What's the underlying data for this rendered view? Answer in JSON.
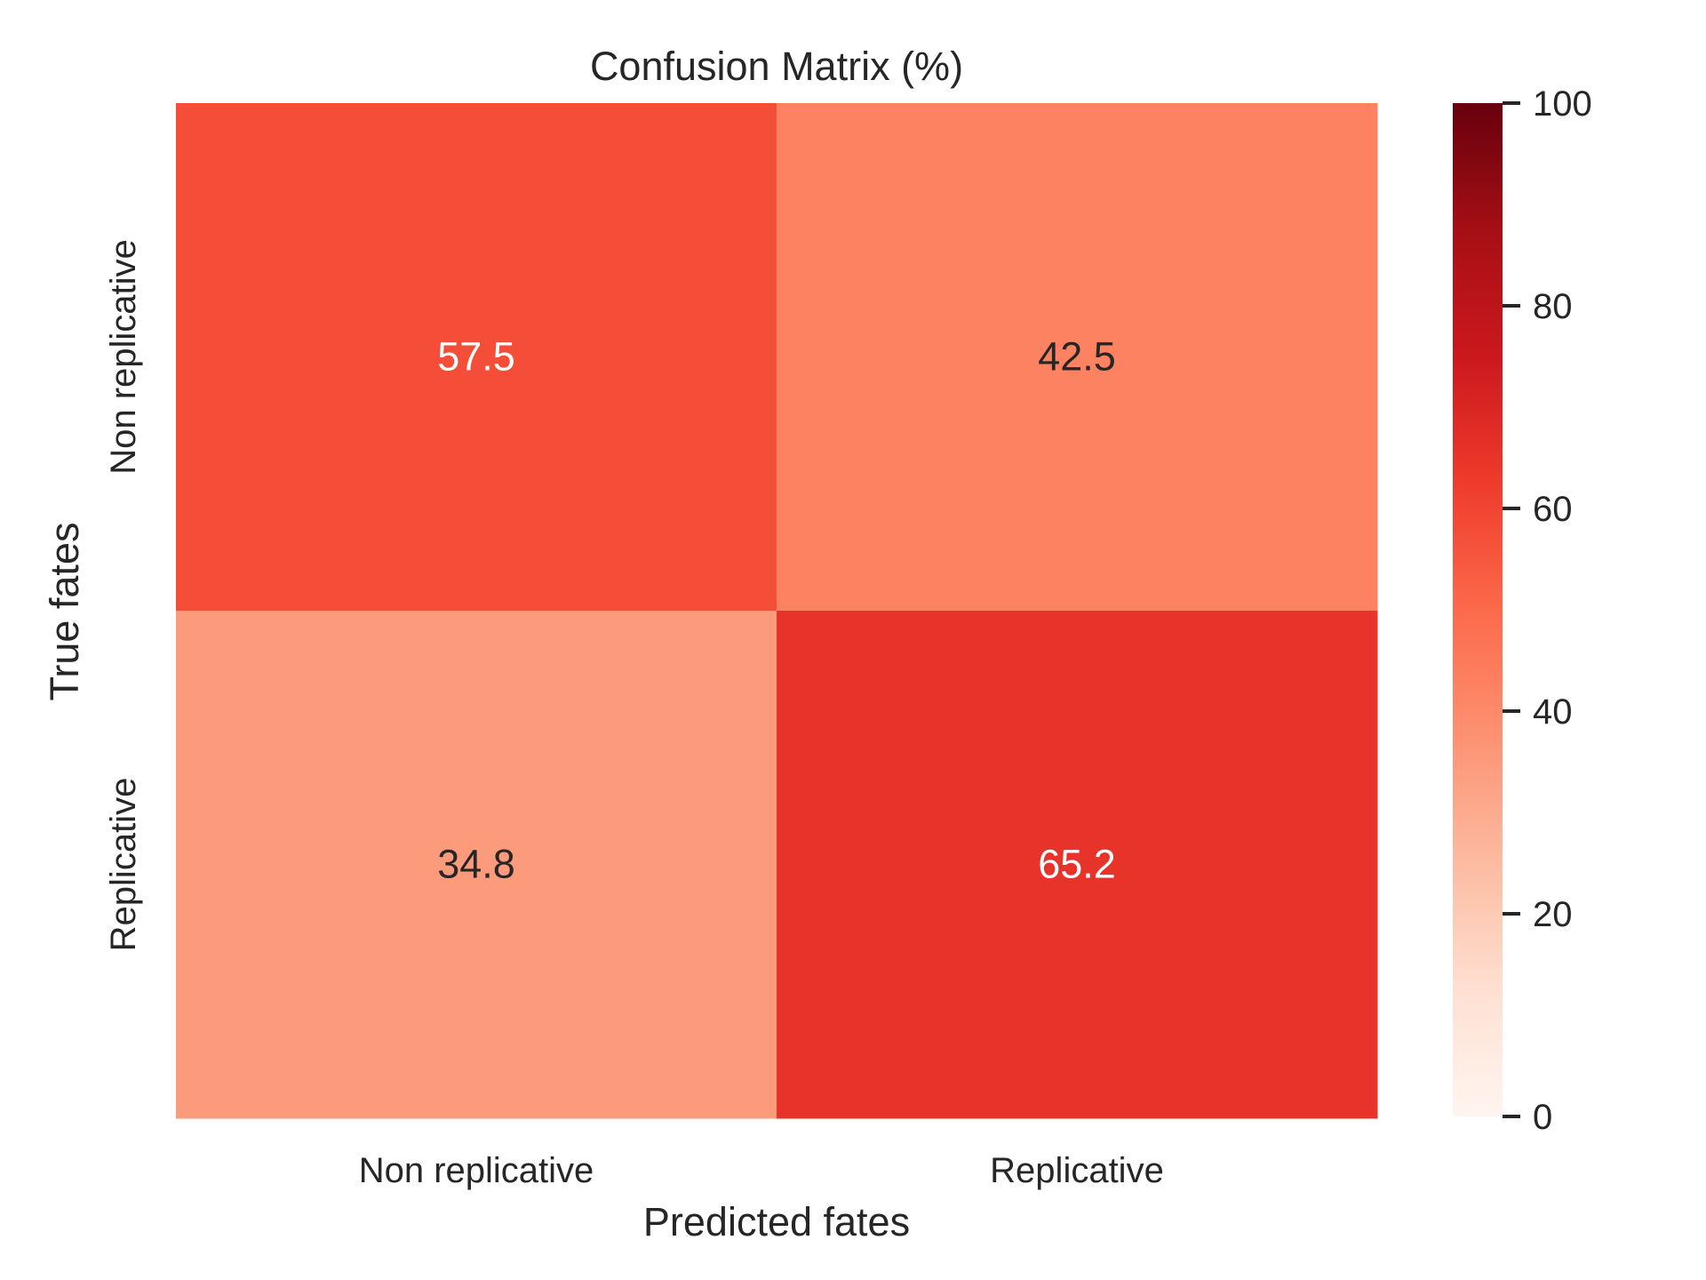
{
  "chart_data": {
    "type": "heatmap",
    "title": "Confusion Matrix (%)",
    "xlabel": "Predicted fates",
    "ylabel": "True fates",
    "x_categories": [
      "Non replicative",
      "Replicative"
    ],
    "y_categories": [
      "Non replicative",
      "Replicative"
    ],
    "values": [
      [
        57.5,
        42.5
      ],
      [
        34.8,
        65.2
      ]
    ],
    "value_labels": [
      [
        "57.5",
        "42.5"
      ],
      [
        "34.8",
        "65.2"
      ]
    ],
    "colorbar": {
      "range": [
        0,
        100
      ],
      "ticks": [
        0,
        20,
        40,
        60,
        80,
        100
      ],
      "tick_labels": [
        "0",
        "20",
        "40",
        "60",
        "80",
        "100"
      ],
      "colormap": "Reds",
      "stops": [
        "#fff5f0",
        "#fee0d2",
        "#fcbba1",
        "#fc9272",
        "#fb6a4a",
        "#ef3b2c",
        "#cb181d",
        "#a50f15",
        "#67000d"
      ]
    },
    "grid": false
  }
}
